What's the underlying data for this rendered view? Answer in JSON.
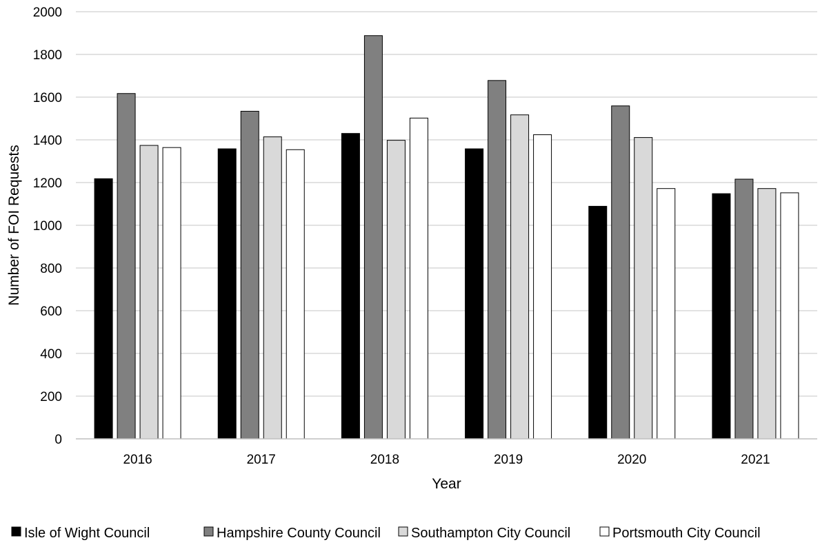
{
  "chart_data": {
    "type": "bar",
    "title": "",
    "xlabel": "Year",
    "ylabel": "Number of FOI Requests",
    "categories": [
      "2016",
      "2017",
      "2018",
      "2019",
      "2020",
      "2021"
    ],
    "ylim": [
      0,
      2000
    ],
    "yticks": [
      0,
      200,
      400,
      600,
      800,
      1000,
      1200,
      1400,
      1600,
      1800,
      2000
    ],
    "grid": true,
    "legend_position": "bottom",
    "series": [
      {
        "name": "Isle of Wight Council",
        "color": "#000000",
        "values": [
          1218,
          1358,
          1430,
          1358,
          1089,
          1148
        ]
      },
      {
        "name": "Hampshire County Council",
        "color": "#808080",
        "values": [
          1617,
          1534,
          1888,
          1678,
          1559,
          1216
        ]
      },
      {
        "name": "Southampton City Council",
        "color": "#d9d9d9",
        "values": [
          1374,
          1414,
          1398,
          1517,
          1411,
          1172
        ]
      },
      {
        "name": "Portsmouth City Council",
        "color": "#ffffff",
        "values": [
          1364,
          1354,
          1502,
          1424,
          1172,
          1152
        ]
      }
    ]
  }
}
